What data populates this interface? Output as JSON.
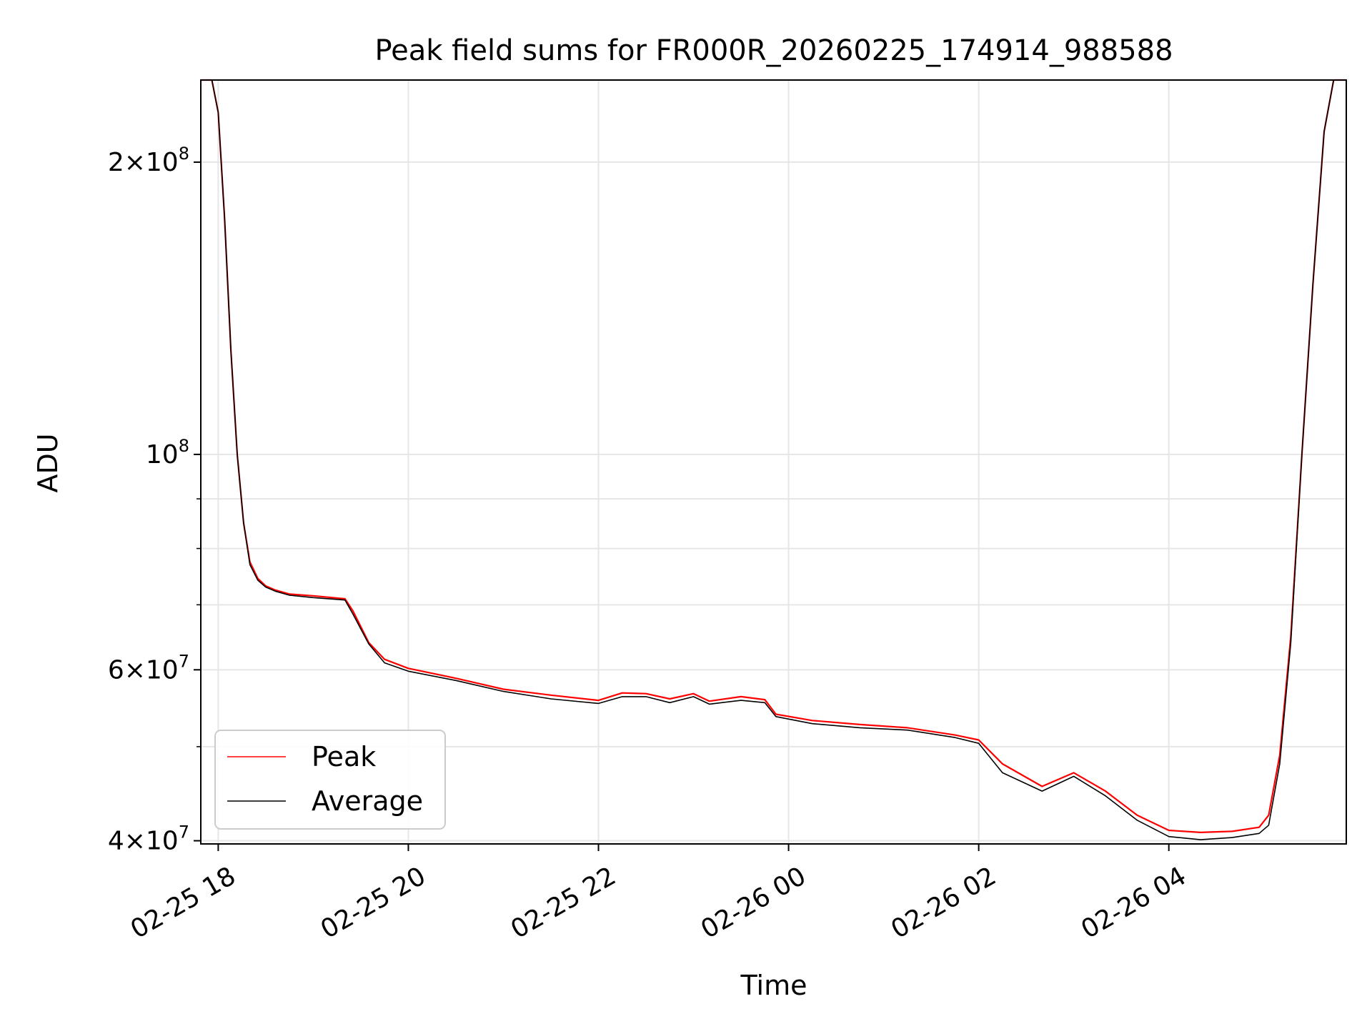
{
  "chart_data": {
    "type": "line",
    "title": "Peak field sums for FR000R_20260225_174914_988588",
    "xlabel": "Time",
    "ylabel": "ADU",
    "y_scale": "log",
    "ylim": [
      39700000,
      243000000
    ],
    "xlim": [
      "2026-02-25 17:49",
      "2026-02-26 05:52"
    ],
    "grid": true,
    "legend_position": "lower-left",
    "x_ticks": [
      {
        "value": "2026-02-25 18:00",
        "label": "02-25 18"
      },
      {
        "value": "2026-02-25 20:00",
        "label": "02-25 20"
      },
      {
        "value": "2026-02-25 22:00",
        "label": "02-25 22"
      },
      {
        "value": "2026-02-26 00:00",
        "label": "02-26 00"
      },
      {
        "value": "2026-02-26 02:00",
        "label": "02-26 02"
      },
      {
        "value": "2026-02-26 04:00",
        "label": "02-26 04"
      }
    ],
    "y_ticks": [
      {
        "value": 40000000,
        "base": "4",
        "exp": "7"
      },
      {
        "value": 60000000,
        "base": "6",
        "exp": "7"
      },
      {
        "value": 100000000,
        "base": "10",
        "exp": "8"
      },
      {
        "value": 200000000,
        "base": "2",
        "exp": "8"
      }
    ],
    "y_minor_ticks": [
      50000000,
      70000000,
      80000000,
      90000000
    ],
    "series": [
      {
        "name": "Peak",
        "color": "#ff0000",
        "x": [
          "2026-02-25 17:49",
          "2026-02-25 17:56",
          "2026-02-25 18:00",
          "2026-02-25 18:04",
          "2026-02-25 18:08",
          "2026-02-25 18:12",
          "2026-02-25 18:16",
          "2026-02-25 18:20",
          "2026-02-25 18:25",
          "2026-02-25 18:30",
          "2026-02-25 18:36",
          "2026-02-25 18:45",
          "2026-02-25 19:00",
          "2026-02-25 19:20",
          "2026-02-25 19:25",
          "2026-02-25 19:35",
          "2026-02-25 19:45",
          "2026-02-25 20:00",
          "2026-02-25 20:30",
          "2026-02-25 21:00",
          "2026-02-25 21:30",
          "2026-02-25 22:00",
          "2026-02-25 22:15",
          "2026-02-25 22:30",
          "2026-02-25 22:45",
          "2026-02-25 23:00",
          "2026-02-25 23:10",
          "2026-02-25 23:30",
          "2026-02-25 23:45",
          "2026-02-25 23:52",
          "2026-02-26 00:15",
          "2026-02-26 00:45",
          "2026-02-26 01:15",
          "2026-02-26 01:45",
          "2026-02-26 02:00",
          "2026-02-26 02:15",
          "2026-02-26 02:40",
          "2026-02-26 03:00",
          "2026-02-26 03:20",
          "2026-02-26 03:40",
          "2026-02-26 04:00",
          "2026-02-26 04:20",
          "2026-02-26 04:40",
          "2026-02-26 04:57",
          "2026-02-26 05:03",
          "2026-02-26 05:10",
          "2026-02-26 05:17",
          "2026-02-26 05:24",
          "2026-02-26 05:31",
          "2026-02-26 05:38",
          "2026-02-26 05:44",
          "2026-02-26 05:52"
        ],
        "values": [
          243000000,
          243000000,
          225000000,
          175000000,
          128000000,
          100000000,
          85000000,
          77500000,
          74500000,
          73200000,
          72500000,
          71800000,
          71500000,
          71000000,
          69000000,
          64000000,
          61500000,
          60200000,
          58800000,
          57300000,
          56500000,
          55800000,
          56800000,
          56700000,
          56000000,
          56700000,
          55700000,
          56300000,
          55900000,
          54000000,
          53200000,
          52700000,
          52300000,
          51400000,
          50800000,
          48000000,
          45500000,
          47000000,
          45000000,
          42500000,
          41000000,
          40800000,
          40900000,
          41300000,
          42500000,
          49000000,
          65000000,
          100000000,
          150000000,
          215000000,
          243000000,
          243000000
        ]
      },
      {
        "name": "Average",
        "color": "#000000",
        "x": [
          "2026-02-25 17:49",
          "2026-02-25 17:56",
          "2026-02-25 18:00",
          "2026-02-25 18:04",
          "2026-02-25 18:08",
          "2026-02-25 18:12",
          "2026-02-25 18:16",
          "2026-02-25 18:20",
          "2026-02-25 18:25",
          "2026-02-25 18:30",
          "2026-02-25 18:36",
          "2026-02-25 18:45",
          "2026-02-25 19:00",
          "2026-02-25 19:20",
          "2026-02-25 19:25",
          "2026-02-25 19:35",
          "2026-02-25 19:45",
          "2026-02-25 20:00",
          "2026-02-25 20:30",
          "2026-02-25 21:00",
          "2026-02-25 21:30",
          "2026-02-25 22:00",
          "2026-02-25 22:15",
          "2026-02-25 22:30",
          "2026-02-25 22:45",
          "2026-02-25 23:00",
          "2026-02-25 23:10",
          "2026-02-25 23:30",
          "2026-02-25 23:45",
          "2026-02-25 23:52",
          "2026-02-26 00:15",
          "2026-02-26 00:45",
          "2026-02-26 01:15",
          "2026-02-26 01:45",
          "2026-02-26 02:00",
          "2026-02-26 02:15",
          "2026-02-26 02:40",
          "2026-02-26 03:00",
          "2026-02-26 03:20",
          "2026-02-26 03:40",
          "2026-02-26 04:00",
          "2026-02-26 04:20",
          "2026-02-26 04:40",
          "2026-02-26 04:57",
          "2026-02-26 05:03",
          "2026-02-26 05:10",
          "2026-02-26 05:17",
          "2026-02-26 05:24",
          "2026-02-26 05:31",
          "2026-02-26 05:38",
          "2026-02-26 05:44",
          "2026-02-26 05:52"
        ],
        "values": [
          243000000,
          243000000,
          225000000,
          175000000,
          128000000,
          100000000,
          85000000,
          77000000,
          74200000,
          73000000,
          72300000,
          71600000,
          71200000,
          70800000,
          68500000,
          63800000,
          61000000,
          59800000,
          58500000,
          57000000,
          56000000,
          55400000,
          56300000,
          56300000,
          55500000,
          56300000,
          55300000,
          55800000,
          55500000,
          53700000,
          52800000,
          52300000,
          52000000,
          51100000,
          50400000,
          47000000,
          45000000,
          46600000,
          44500000,
          42000000,
          40400000,
          40100000,
          40300000,
          40700000,
          41500000,
          48000000,
          64000000,
          100000000,
          150000000,
          215000000,
          243000000,
          243000000
        ]
      }
    ]
  }
}
